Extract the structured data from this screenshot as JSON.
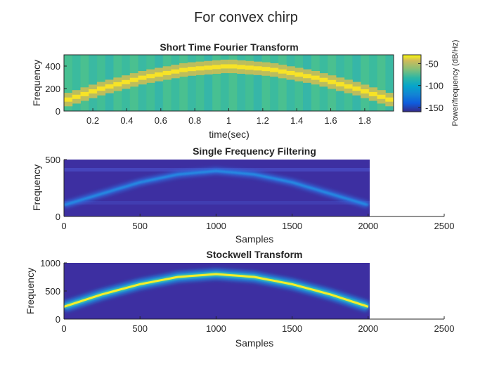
{
  "figure_title": "For convex chirp",
  "chart_data": [
    {
      "type": "heatmap",
      "title": "Short Time Fourier Transform",
      "xlabel": "time(sec)",
      "ylabel": "Frequency",
      "xlim": [
        0.03,
        1.97
      ],
      "ylim": [
        0,
        500
      ],
      "xticks": [
        0.2,
        0.4,
        0.6,
        0.8,
        1,
        1.2,
        1.4,
        1.6,
        1.8
      ],
      "xtick_labels": [
        "0.2",
        "0.4",
        "0.6",
        "0.8",
        "1",
        "1.2",
        "1.4",
        "1.6",
        "1.8"
      ],
      "yticks": [
        0,
        200,
        400
      ],
      "ytick_labels": [
        "0",
        "200",
        "400"
      ],
      "ridge": {
        "t": [
          0.05,
          0.25,
          0.5,
          0.75,
          1.0,
          1.25,
          1.5,
          1.75,
          1.95
        ],
        "f": [
          100,
          200,
          300,
          370,
          400,
          370,
          300,
          200,
          100
        ]
      },
      "colorbar": {
        "label": "Power/frequency (dB/Hz)",
        "range": [
          -160,
          -30
        ],
        "ticks": [
          -50,
          -100,
          -150
        ],
        "tick_labels": [
          "-50",
          "-100",
          "-150"
        ],
        "colormap": "parula"
      }
    },
    {
      "type": "heatmap",
      "title": "Single Frequency Filtering",
      "xlabel": "Samples",
      "ylabel": "Frequency",
      "xlim": [
        0,
        2500
      ],
      "ylim": [
        0,
        500
      ],
      "data_extent_x": [
        0,
        2000
      ],
      "xticks": [
        0,
        500,
        1000,
        1500,
        2000,
        2500
      ],
      "xtick_labels": [
        "0",
        "500",
        "1000",
        "1500",
        "2000",
        "2500"
      ],
      "yticks": [
        0,
        500
      ],
      "ytick_labels": [
        "0",
        "500"
      ],
      "ridge": {
        "x": [
          0,
          250,
          500,
          750,
          1000,
          1250,
          1500,
          1750,
          2000
        ],
        "f": [
          100,
          200,
          300,
          370,
          400,
          370,
          300,
          200,
          100
        ]
      },
      "colormap": "parula"
    },
    {
      "type": "heatmap",
      "title": "Stockwell Transform",
      "xlabel": "Samples",
      "ylabel": "Frequency",
      "xlim": [
        0,
        2500
      ],
      "ylim": [
        0,
        1000
      ],
      "data_extent_x": [
        0,
        2000
      ],
      "xticks": [
        0,
        500,
        1000,
        1500,
        2000,
        2500
      ],
      "xtick_labels": [
        "0",
        "500",
        "1000",
        "1500",
        "2000",
        "2500"
      ],
      "yticks": [
        0,
        500,
        1000
      ],
      "ytick_labels": [
        "0",
        "500",
        "1000"
      ],
      "ridge": {
        "x": [
          0,
          250,
          500,
          750,
          1000,
          1250,
          1500,
          1750,
          2000
        ],
        "f": [
          220,
          440,
          620,
          750,
          800,
          750,
          620,
          440,
          220
        ]
      },
      "colormap": "parula"
    }
  ]
}
